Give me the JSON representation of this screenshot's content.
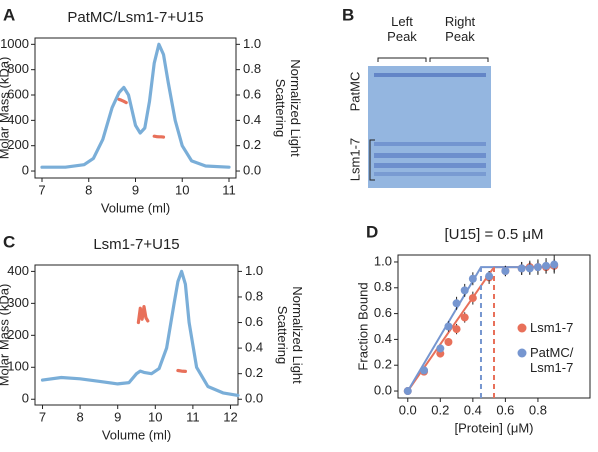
{
  "chart_data": [
    {
      "type": "line",
      "label": "A",
      "title": "PatMC/Lsm1-7+U15",
      "xlabel": "Volume (ml)",
      "ylabel": "Molar Mass (kDa)",
      "y2label": "Normalized Light Scattering",
      "xlim": [
        6.85,
        11.15
      ],
      "xticks": [
        7,
        8,
        9,
        10,
        11
      ],
      "ylim": [
        -55,
        1050
      ],
      "yticks": [
        0,
        200,
        400,
        600,
        800,
        1000
      ],
      "y2lim": [
        -0.055,
        1.05
      ],
      "y2ticks": [
        {
          "value": 0,
          "label": "0.0"
        },
        0.2,
        0.4,
        0.6,
        0.8,
        {
          "value": 1,
          "label": "1.0"
        }
      ],
      "series": [
        {
          "color": "#7aaed8",
          "axis": "y2",
          "x": [
            7.0,
            7.5,
            7.9,
            8.1,
            8.3,
            8.5,
            8.65,
            8.75,
            8.85,
            9.0,
            9.1,
            9.2,
            9.3,
            9.4,
            9.5,
            9.6,
            9.7,
            9.85,
            10.0,
            10.2,
            10.5,
            11.0
          ],
          "values": [
            0.03,
            0.03,
            0.05,
            0.1,
            0.25,
            0.5,
            0.62,
            0.66,
            0.6,
            0.36,
            0.3,
            0.34,
            0.55,
            0.85,
            1.0,
            0.92,
            0.7,
            0.4,
            0.2,
            0.08,
            0.04,
            0.03
          ]
        },
        {
          "color": "#e8705a",
          "axis": "y",
          "x": [
            8.65,
            8.7,
            8.75,
            8.8,
            9.0,
            9.4,
            9.45,
            9.5,
            9.55,
            9.6
          ],
          "values": [
            565,
            558,
            550,
            540,
            null,
            275,
            272,
            270,
            270,
            268
          ]
        }
      ]
    },
    {
      "type": "line",
      "label": "C",
      "title": "Lsm1-7+U15",
      "xlabel": "Volume (ml)",
      "ylabel": "Molar Mass (kDa)",
      "y2label": "Normalized Light Scattering",
      "xlim": [
        6.8,
        12.2
      ],
      "xticks": [
        7,
        8,
        9,
        10,
        11,
        12
      ],
      "ylim": [
        -18,
        420
      ],
      "yticks": [
        0,
        100,
        200,
        300,
        400
      ],
      "y2lim": [
        -0.045,
        1.05
      ],
      "y2ticks": [
        {
          "value": 0,
          "label": "0.0"
        },
        0.2,
        0.4,
        0.6,
        0.8,
        {
          "value": 1,
          "label": "1.0"
        }
      ],
      "series": [
        {
          "color": "#7aaed8",
          "axis": "y2",
          "x": [
            7.0,
            7.5,
            8.0,
            8.5,
            9.0,
            9.3,
            9.5,
            9.6,
            9.7,
            9.9,
            10.1,
            10.3,
            10.5,
            10.6,
            10.7,
            10.8,
            10.9,
            11.1,
            11.4,
            11.8,
            12.2
          ],
          "values": [
            0.15,
            0.17,
            0.16,
            0.14,
            0.12,
            0.13,
            0.2,
            0.22,
            0.21,
            0.2,
            0.24,
            0.4,
            0.75,
            0.92,
            1.0,
            0.9,
            0.6,
            0.25,
            0.1,
            0.05,
            0.03
          ]
        },
        {
          "color": "#e8705a",
          "axis": "y",
          "x": [
            9.55,
            9.6,
            9.65,
            9.7,
            9.75,
            9.8,
            10.2,
            10.6,
            10.7,
            10.8
          ],
          "values": [
            240,
            285,
            250,
            290,
            255,
            245,
            null,
            90,
            88,
            87
          ]
        }
      ]
    },
    {
      "type": "scatter",
      "label": "D",
      "title": "[U15] = 0.5 μM",
      "xlabel": "[Protein] (μM)",
      "ylabel": "Fraction Bound",
      "xlim": [
        -0.06,
        1.12
      ],
      "xticks": [
        {
          "value": 0,
          "label": "0.0"
        },
        0.2,
        0.4,
        0.6,
        0.8
      ],
      "ylim": [
        -0.054,
        1.054
      ],
      "yticks": [
        {
          "value": 0,
          "label": "0.0"
        },
        0.2,
        0.4,
        0.6,
        0.8,
        {
          "value": 1,
          "label": "1.0"
        }
      ],
      "legend": "lower right",
      "x": [
        0,
        0.1,
        0.2,
        0.25,
        0.3,
        0.35,
        0.4,
        0.5,
        0.6,
        0.7,
        0.75,
        0.8,
        0.85,
        0.9
      ],
      "series": [
        {
          "name": "Lsm1-7",
          "color": "#e8705a",
          "values": [
            0,
            0.15,
            0.29,
            0.38,
            0.48,
            0.57,
            0.72,
            0.88,
            0.93,
            0.95,
            0.96,
            0.96,
            0.96,
            0.97
          ],
          "errors": [
            0.01,
            0.02,
            0.03,
            0.03,
            0.04,
            0.04,
            0.05,
            0.05,
            0.04,
            0.05,
            0.05,
            0.05,
            0.05,
            0.05
          ]
        },
        {
          "name": "PatMC/ Lsm1-7",
          "color": "#7696d0",
          "values": [
            0,
            0.16,
            0.33,
            0.5,
            0.68,
            0.78,
            0.87,
            0.89,
            0.93,
            0.95,
            0.95,
            0.96,
            0.97,
            0.98
          ],
          "errors": [
            0.01,
            0.02,
            0.03,
            0.04,
            0.05,
            0.05,
            0.05,
            0.04,
            0.04,
            0.05,
            0.05,
            0.06,
            0.06,
            0.07
          ]
        }
      ],
      "fits": [
        {
          "color": "#e8705a",
          "x": [
            0,
            0.53,
            0.92
          ],
          "values": [
            0,
            0.96,
            0.96
          ]
        },
        {
          "color": "#7696d0",
          "x": [
            0,
            0.45,
            0.92
          ],
          "values": [
            0,
            0.96,
            0.96
          ]
        }
      ],
      "vlines": [
        {
          "color": "#e8705a",
          "value": 0.53
        },
        {
          "color": "#7696d0",
          "value": 0.45
        }
      ]
    }
  ],
  "gel": {
    "label": "B",
    "columns": [
      "Left Peak",
      "Right Peak"
    ],
    "rows": [
      "PatMC",
      "Lsm1-7"
    ]
  }
}
